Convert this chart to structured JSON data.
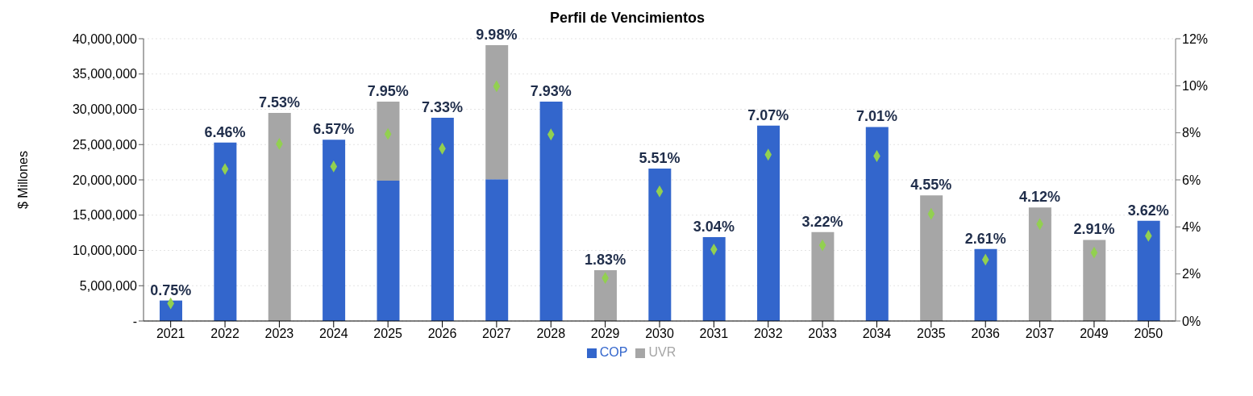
{
  "chart_data": {
    "type": "bar",
    "title": "Perfil de Vencimientos",
    "ylabel": "$ Millones",
    "categories": [
      "2021",
      "2022",
      "2023",
      "2024",
      "2025",
      "2026",
      "2027",
      "2028",
      "2029",
      "2030",
      "2031",
      "2032",
      "2033",
      "2034",
      "2035",
      "2036",
      "2037",
      "2049",
      "2050"
    ],
    "stacked": true,
    "series": [
      {
        "name": "COP",
        "color": "#3366cc",
        "values": [
          2900000,
          25300000,
          null,
          25700000,
          19900000,
          28800000,
          20100000,
          31100000,
          null,
          21600000,
          11900000,
          27700000,
          null,
          27500000,
          null,
          10200000,
          null,
          null,
          14200000
        ]
      },
      {
        "name": "UVR",
        "color": "#a6a6a6",
        "values": [
          null,
          null,
          29500000,
          null,
          11200000,
          null,
          19000000,
          null,
          7200000,
          null,
          null,
          null,
          12600000,
          null,
          17800000,
          null,
          16100000,
          11500000,
          null
        ]
      },
      {
        "type": "scatter",
        "axis": "y2",
        "color": "#92d050",
        "marker": "diamond",
        "values": [
          0.75,
          6.46,
          7.53,
          6.57,
          7.95,
          7.33,
          9.98,
          7.93,
          1.83,
          5.51,
          3.04,
          7.07,
          3.22,
          7.01,
          4.55,
          2.61,
          4.12,
          2.91,
          3.62
        ],
        "value_labels": [
          "0.75%",
          "6.46%",
          "7.53%",
          "6.57%",
          "7.95%",
          "7.33%",
          "9.98%",
          "7.93%",
          "1.83%",
          "5.51%",
          "3.04%",
          "7.07%",
          "3.22%",
          "7.01%",
          "4.55%",
          "2.61%",
          "4.12%",
          "2.91%",
          "3.62%"
        ]
      }
    ],
    "ylim": [
      0,
      40000000
    ],
    "yticks": [
      {
        "value": 0,
        "label": "-"
      },
      {
        "value": 5000000,
        "label": "5,000,000"
      },
      {
        "value": 10000000,
        "label": "10,000,000"
      },
      {
        "value": 15000000,
        "label": "15,000,000"
      },
      {
        "value": 20000000,
        "label": "20,000,000"
      },
      {
        "value": 25000000,
        "label": "25,000,000"
      },
      {
        "value": 30000000,
        "label": "30,000,000"
      },
      {
        "value": 35000000,
        "label": "35,000,000"
      },
      {
        "value": 40000000,
        "label": "40,000,000"
      }
    ],
    "y2lim": [
      0,
      12
    ],
    "y2ticks": [
      {
        "value": 0,
        "label": "0%"
      },
      {
        "value": 2,
        "label": "2%"
      },
      {
        "value": 4,
        "label": "4%"
      },
      {
        "value": 6,
        "label": "6%"
      },
      {
        "value": 8,
        "label": "8%"
      },
      {
        "value": 10,
        "label": "10%"
      },
      {
        "value": 12,
        "label": "12%"
      }
    ],
    "grid": "y",
    "legend": "bottom"
  }
}
